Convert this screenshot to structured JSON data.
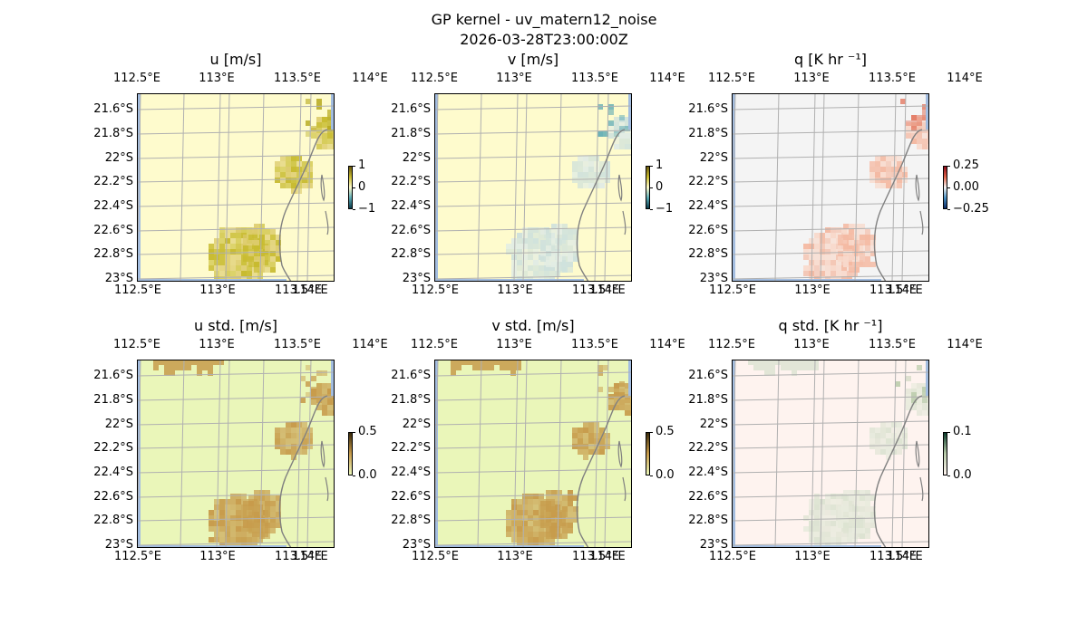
{
  "figure": {
    "title": "GP kernel - uv_matern12_noise",
    "subtitle": "2026-03-28T23:00:00Z"
  },
  "axes": {
    "lon_ticks": [
      "112.5°E",
      "113°E",
      "113.5°E",
      "114°E"
    ],
    "lat_ticks": [
      "21.6°S",
      "21.8°S",
      "22°S",
      "22.2°S",
      "22.4°S",
      "22.6°S",
      "22.8°S",
      "23°S"
    ],
    "lon_range": [
      112.35,
      114.25
    ],
    "lat_range": [
      -23.0,
      -21.47
    ]
  },
  "panels": [
    {
      "id": "u",
      "title": "u [m/s]",
      "colormap": "yellow-olive-teal diverging",
      "background": "#fefbcd",
      "field": "signed",
      "palette": [
        "#c8bb30",
        "#dcca6a"
      ],
      "highlight": "#b7a91f",
      "colorbar": {
        "ticks": [
          "1",
          "0",
          "−1"
        ],
        "range": [
          -1,
          1
        ]
      }
    },
    {
      "id": "v",
      "title": "v [m/s]",
      "colormap": "yellow-olive-teal diverging",
      "background": "#fefbcd",
      "field": "signed",
      "palette": [
        "#cfe1dc",
        "#e2ece4"
      ],
      "highlight": "#5aa9b3",
      "colorbar": {
        "ticks": [
          "1",
          "0",
          "−1"
        ],
        "range": [
          -1,
          1
        ]
      }
    },
    {
      "id": "q",
      "title": "q [K hr ⁻¹]",
      "colormap": "red-white-blue diverging",
      "background": "#f4f4f4",
      "field": "signed",
      "palette": [
        "#f4b9a2",
        "#f8d9cb"
      ],
      "highlight": "#e0654a",
      "colorbar": {
        "ticks": [
          "0.25",
          "0.00",
          "−0.25"
        ],
        "range": [
          -0.35,
          0.35
        ]
      }
    },
    {
      "id": "u_std",
      "title": "u std. [m/s]",
      "colormap": "yellow-brown sequential",
      "background": "#eaf6b9",
      "field": "std",
      "palette": [
        "#c79b4b",
        "#c8a050"
      ],
      "highlight": "#c79b4b",
      "colorbar": {
        "ticks": [
          "0.5",
          "0.0"
        ],
        "range": [
          0,
          0.5
        ]
      }
    },
    {
      "id": "v_std",
      "title": "v std. [m/s]",
      "colormap": "yellow-brown sequential",
      "background": "#eaf6b9",
      "field": "std",
      "palette": [
        "#c79b4b",
        "#c8a050"
      ],
      "highlight": "#c79b4b",
      "colorbar": {
        "ticks": [
          "0.5",
          "0.0"
        ],
        "range": [
          0,
          0.5
        ]
      }
    },
    {
      "id": "q_std",
      "title": "q std. [K hr ⁻¹]",
      "colormap": "pink-green sequential",
      "background": "#fef3ef",
      "field": "std",
      "palette": [
        "#dde3d2",
        "#e7eadc"
      ],
      "highlight": "#b9cbaa",
      "colorbar": {
        "ticks": [
          "0.1",
          "0.0"
        ],
        "range": [
          0,
          0.1
        ]
      }
    }
  ],
  "colors": {
    "ocean_edge": "#a3bde0",
    "coastline": "#808080",
    "gridline": "#b0b0b0"
  }
}
